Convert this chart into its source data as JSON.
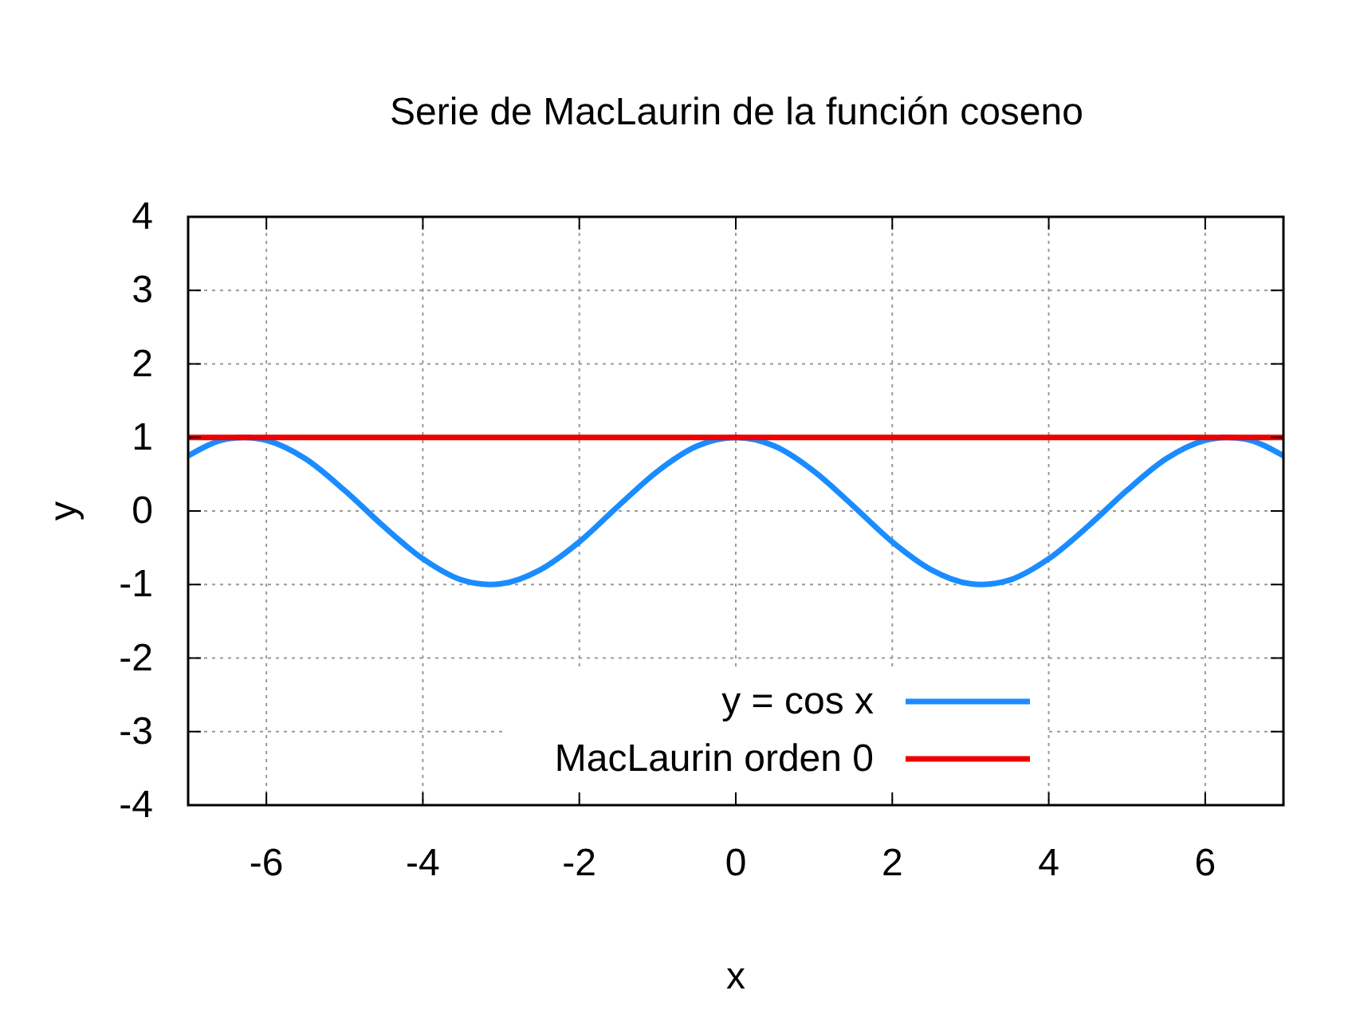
{
  "chart_data": {
    "type": "line",
    "title": "Serie de MacLaurin de la función coseno",
    "xlabel": "x",
    "ylabel": "y",
    "xlim": [
      -7,
      7
    ],
    "ylim": [
      -4,
      4
    ],
    "xticks": [
      -6,
      -4,
      -2,
      0,
      2,
      4,
      6
    ],
    "yticks": [
      -4,
      -3,
      -2,
      -1,
      0,
      1,
      2,
      3,
      4
    ],
    "grid": true,
    "legend": "bottom right",
    "line_style": "solid",
    "marker": "none",
    "series": [
      {
        "name": "y = cos x",
        "color": "#1a8cff",
        "x": [
          -7,
          -6.5,
          -6.28,
          -6,
          -5.5,
          -5,
          -4.5,
          -4,
          -3.5,
          -3.14,
          -3,
          -2.5,
          -2,
          -1.5,
          -1,
          -0.5,
          0,
          0.5,
          1,
          1.5,
          2,
          2.5,
          3,
          3.14,
          3.5,
          4,
          4.5,
          5,
          5.5,
          6,
          6.28,
          6.5,
          7
        ],
        "values": [
          0.75,
          0.98,
          1,
          0.96,
          0.71,
          0.28,
          -0.21,
          -0.65,
          -0.94,
          -1,
          -0.99,
          -0.8,
          -0.42,
          0.07,
          0.54,
          0.88,
          1,
          0.88,
          0.54,
          0.07,
          -0.42,
          -0.8,
          -0.99,
          -1,
          -0.94,
          -0.65,
          -0.21,
          0.28,
          0.71,
          0.96,
          1,
          0.98,
          0.75
        ]
      },
      {
        "name": "MacLaurin orden 0",
        "color": "#ee0000",
        "x": [
          -7,
          7
        ],
        "values": [
          1,
          1
        ]
      }
    ]
  }
}
